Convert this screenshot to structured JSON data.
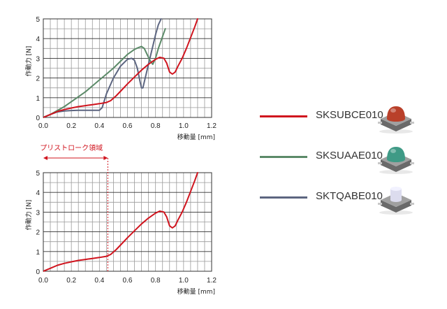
{
  "colors": {
    "red": "#d0141e",
    "green": "#5b8a68",
    "blue": "#5c6580"
  },
  "chart_data": [
    {
      "type": "line",
      "ylabel": "作動力 [N]",
      "xlabel": "移動量 [mm]",
      "xlim": [
        0,
        1.2
      ],
      "ylim": [
        0,
        5
      ],
      "xticks": [
        "0.0",
        "0.2",
        "0.4",
        "0.6",
        "0.8",
        "1.0",
        "1.2"
      ],
      "yticks": [
        "0",
        "1",
        "2",
        "3",
        "4",
        "5"
      ],
      "grid": true,
      "series": [
        {
          "name": "SKSUBCE010",
          "color": "#d0141e",
          "x": [
            0,
            0.05,
            0.1,
            0.15,
            0.2,
            0.25,
            0.3,
            0.35,
            0.4,
            0.45,
            0.48,
            0.52,
            0.56,
            0.6,
            0.65,
            0.7,
            0.75,
            0.8,
            0.83,
            0.86,
            0.88,
            0.9,
            0.92,
            0.94,
            0.96,
            0.99,
            1.02,
            1.05,
            1.08,
            1.1
          ],
          "y": [
            0,
            0.15,
            0.3,
            0.4,
            0.48,
            0.55,
            0.6,
            0.65,
            0.7,
            0.76,
            0.85,
            1.1,
            1.4,
            1.7,
            2.05,
            2.4,
            2.7,
            2.95,
            3.05,
            3.0,
            2.75,
            2.3,
            2.2,
            2.3,
            2.6,
            3.0,
            3.5,
            4.05,
            4.6,
            5.0
          ]
        },
        {
          "name": "SKSUAAE010",
          "color": "#5b8a68",
          "x": [
            0,
            0.05,
            0.1,
            0.15,
            0.2,
            0.25,
            0.3,
            0.35,
            0.4,
            0.45,
            0.5,
            0.55,
            0.6,
            0.65,
            0.68,
            0.7,
            0.72,
            0.74,
            0.76,
            0.78,
            0.8,
            0.82,
            0.84,
            0.86,
            0.87
          ],
          "y": [
            0,
            0.15,
            0.35,
            0.55,
            0.8,
            1.05,
            1.3,
            1.6,
            1.9,
            2.2,
            2.5,
            2.85,
            3.2,
            3.45,
            3.55,
            3.6,
            3.5,
            3.2,
            2.9,
            2.7,
            3.0,
            3.5,
            3.9,
            4.3,
            4.5
          ]
        },
        {
          "name": "SKTQABE010",
          "color": "#5c6580",
          "x": [
            0,
            0.05,
            0.1,
            0.15,
            0.2,
            0.25,
            0.3,
            0.35,
            0.4,
            0.42,
            0.45,
            0.5,
            0.55,
            0.6,
            0.63,
            0.65,
            0.67,
            0.69,
            0.7,
            0.71,
            0.72,
            0.74,
            0.76,
            0.78,
            0.8,
            0.82,
            0.84
          ],
          "y": [
            0,
            0.15,
            0.28,
            0.33,
            0.35,
            0.36,
            0.36,
            0.36,
            0.36,
            0.5,
            1.2,
            2.0,
            2.6,
            2.95,
            3.0,
            2.9,
            2.5,
            1.8,
            1.5,
            1.5,
            1.8,
            2.4,
            3.0,
            3.6,
            4.2,
            4.7,
            5.0
          ]
        }
      ]
    },
    {
      "type": "line",
      "ylabel": "作動力 [N]",
      "xlabel": "移動量 [mm]",
      "xlim": [
        0,
        1.2
      ],
      "ylim": [
        0,
        5
      ],
      "xticks": [
        "0.0",
        "0.2",
        "0.4",
        "0.6",
        "0.8",
        "1.0",
        "1.2"
      ],
      "yticks": [
        "0",
        "1",
        "2",
        "3",
        "4",
        "5"
      ],
      "grid": true,
      "annotation": {
        "text": "プリストローク領域",
        "x_start": 0,
        "x_end": 0.46,
        "color": "#d0141e"
      },
      "series": [
        {
          "name": "SKSUBCE010",
          "color": "#d0141e",
          "x": [
            0,
            0.05,
            0.1,
            0.15,
            0.2,
            0.25,
            0.3,
            0.35,
            0.4,
            0.45,
            0.48,
            0.52,
            0.56,
            0.6,
            0.65,
            0.7,
            0.75,
            0.8,
            0.83,
            0.86,
            0.88,
            0.9,
            0.92,
            0.94,
            0.96,
            0.99,
            1.02,
            1.05,
            1.08,
            1.1
          ],
          "y": [
            0,
            0.15,
            0.3,
            0.4,
            0.48,
            0.55,
            0.6,
            0.65,
            0.7,
            0.76,
            0.85,
            1.1,
            1.4,
            1.7,
            2.05,
            2.4,
            2.7,
            2.95,
            3.05,
            3.0,
            2.75,
            2.3,
            2.2,
            2.3,
            2.6,
            3.0,
            3.5,
            4.05,
            4.6,
            5.0
          ]
        }
      ]
    }
  ],
  "legend": [
    {
      "label": "SKSUBCE010",
      "color": "#d0141e",
      "icon": "red-cap-switch-icon",
      "cap_color": "#b9402a",
      "cap_shape": "dome"
    },
    {
      "label": "SKSUAAE010",
      "color": "#5b8a68",
      "icon": "green-cap-switch-icon",
      "cap_color": "#3f9a86",
      "cap_shape": "dome"
    },
    {
      "label": "SKTQABE010",
      "color": "#5c6580",
      "icon": "white-cap-switch-icon",
      "cap_color": "#dcdcee",
      "cap_shape": "cylinder"
    }
  ]
}
